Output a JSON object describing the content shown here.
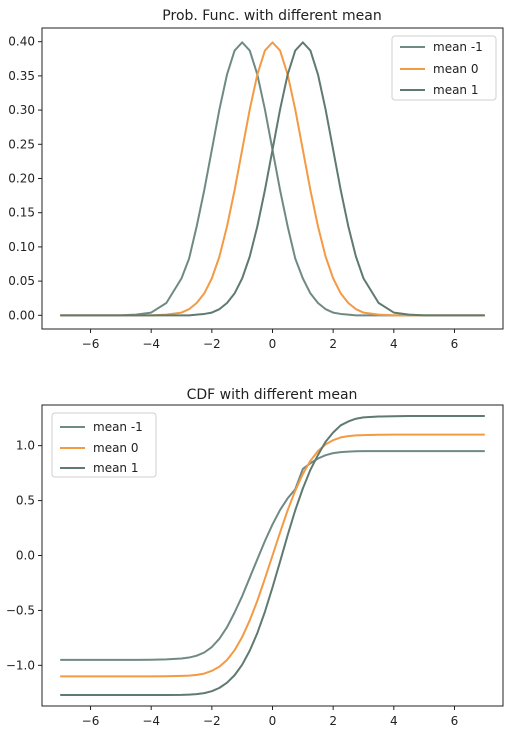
{
  "chart_data": [
    {
      "type": "line",
      "title": "Prob. Func. with different mean",
      "xlabel": "",
      "ylabel": "",
      "xlim": [
        -7.6,
        7.6
      ],
      "ylim": [
        -0.02,
        0.42
      ],
      "xticks": [
        "-6",
        "-4",
        "-2",
        "0",
        "2",
        "4",
        "6"
      ],
      "yticks": [
        "0.00",
        "0.05",
        "0.10",
        "0.15",
        "0.20",
        "0.25",
        "0.30",
        "0.35",
        "0.40"
      ],
      "grid": false,
      "legend_position": "top-right",
      "x": [
        -7,
        -6.5,
        -6,
        -5.5,
        -5,
        -4.5,
        -4,
        -3.5,
        -3,
        -2.75,
        -2.5,
        -2.25,
        -2,
        -1.75,
        -1.5,
        -1.25,
        -1,
        -0.75,
        -0.5,
        -0.25,
        0,
        0.25,
        0.5,
        0.75,
        1,
        1.25,
        1.5,
        1.75,
        2,
        2.25,
        2.5,
        2.75,
        3,
        3.5,
        4,
        4.5,
        5,
        5.5,
        6,
        6.5,
        7
      ],
      "series": [
        {
          "name": "mean -1",
          "color": "#6f8a85",
          "values": [
            0.0,
            0.0,
            0.0,
            0.0,
            0.0,
            0.001,
            0.004,
            0.018,
            0.054,
            0.083,
            0.13,
            0.183,
            0.242,
            0.301,
            0.352,
            0.387,
            0.399,
            0.387,
            0.352,
            0.301,
            0.242,
            0.183,
            0.13,
            0.083,
            0.054,
            0.032,
            0.018,
            0.009,
            0.004,
            0.002,
            0.001,
            0.0,
            0.0,
            0.0,
            0.0,
            0.0,
            0.0,
            0.0,
            0.0,
            0.0,
            0.0
          ]
        },
        {
          "name": "mean 0",
          "color": "#f39a45",
          "values": [
            0.0,
            0.0,
            0.0,
            0.0,
            0.0,
            0.0,
            0.0,
            0.001,
            0.004,
            0.009,
            0.018,
            0.032,
            0.054,
            0.086,
            0.13,
            0.183,
            0.242,
            0.301,
            0.352,
            0.387,
            0.399,
            0.387,
            0.352,
            0.301,
            0.242,
            0.183,
            0.13,
            0.086,
            0.054,
            0.032,
            0.018,
            0.009,
            0.004,
            0.001,
            0.0,
            0.0,
            0.0,
            0.0,
            0.0,
            0.0,
            0.0
          ]
        },
        {
          "name": "mean 1",
          "color": "#5f7a6e",
          "values": [
            0.0,
            0.0,
            0.0,
            0.0,
            0.0,
            0.0,
            0.0,
            0.0,
            0.0,
            0.0,
            0.001,
            0.002,
            0.004,
            0.009,
            0.018,
            0.032,
            0.054,
            0.086,
            0.13,
            0.183,
            0.242,
            0.301,
            0.352,
            0.387,
            0.399,
            0.387,
            0.352,
            0.301,
            0.242,
            0.183,
            0.13,
            0.086,
            0.054,
            0.018,
            0.004,
            0.001,
            0.0,
            0.0,
            0.0,
            0.0,
            0.0
          ]
        }
      ]
    },
    {
      "type": "line",
      "title": "CDF with different mean",
      "xlabel": "",
      "ylabel": "",
      "xlim": [
        -7.6,
        7.6
      ],
      "ylim": [
        -1.37,
        1.37
      ],
      "xticks": [
        "-6",
        "-4",
        "-2",
        "0",
        "2",
        "4",
        "6"
      ],
      "yticks": [
        "−1.0",
        "−0.5",
        "0.0",
        "0.5",
        "1.0"
      ],
      "grid": false,
      "legend_position": "top-left",
      "x": [
        -7,
        -6.5,
        -6,
        -5.5,
        -5,
        -4.5,
        -4,
        -3.5,
        -3,
        -2.75,
        -2.5,
        -2.25,
        -2,
        -1.75,
        -1.5,
        -1.25,
        -1,
        -0.75,
        -0.5,
        -0.25,
        0,
        0.25,
        0.5,
        0.75,
        1,
        1.25,
        1.5,
        1.75,
        2,
        2.25,
        2.5,
        2.75,
        3,
        3.5,
        4,
        4.5,
        5,
        5.5,
        6,
        6.5,
        7
      ],
      "series": [
        {
          "name": "mean -1",
          "color": "#6f8a85",
          "values": [
            -0.95,
            -0.95,
            -0.95,
            -0.95,
            -0.95,
            -0.95,
            -0.949,
            -0.946,
            -0.938,
            -0.929,
            -0.912,
            -0.883,
            -0.833,
            -0.757,
            -0.653,
            -0.519,
            -0.37,
            -0.202,
            -0.034,
            0.132,
            0.283,
            0.415,
            0.521,
            0.603,
            0.788,
            0.84,
            0.883,
            0.913,
            0.932,
            0.941,
            0.946,
            0.949,
            0.95,
            0.95,
            0.95,
            0.95,
            0.95,
            0.95,
            0.95,
            0.95,
            0.95
          ]
        },
        {
          "name": "mean 0",
          "color": "#f39a45",
          "values": [
            -1.1,
            -1.1,
            -1.1,
            -1.1,
            -1.1,
            -1.1,
            -1.1,
            -1.099,
            -1.096,
            -1.093,
            -1.087,
            -1.075,
            -1.05,
            -1.012,
            -0.951,
            -0.862,
            -0.742,
            -0.59,
            -0.412,
            -0.21,
            0.0,
            0.21,
            0.412,
            0.59,
            0.742,
            0.862,
            0.951,
            1.012,
            1.05,
            1.075,
            1.087,
            1.093,
            1.096,
            1.099,
            1.1,
            1.1,
            1.1,
            1.1,
            1.1,
            1.1,
            1.1
          ]
        },
        {
          "name": "mean 1",
          "color": "#5f7a6e",
          "values": [
            -1.27,
            -1.27,
            -1.27,
            -1.27,
            -1.27,
            -1.27,
            -1.27,
            -1.27,
            -1.269,
            -1.266,
            -1.262,
            -1.253,
            -1.235,
            -1.205,
            -1.158,
            -1.09,
            -0.994,
            -0.866,
            -0.706,
            -0.512,
            -0.29,
            -0.055,
            0.185,
            0.412,
            0.61,
            0.78,
            0.915,
            1.035,
            1.12,
            1.185,
            1.22,
            1.245,
            1.257,
            1.265,
            1.268,
            1.27,
            1.27,
            1.27,
            1.27,
            1.27,
            1.27
          ]
        }
      ]
    }
  ]
}
